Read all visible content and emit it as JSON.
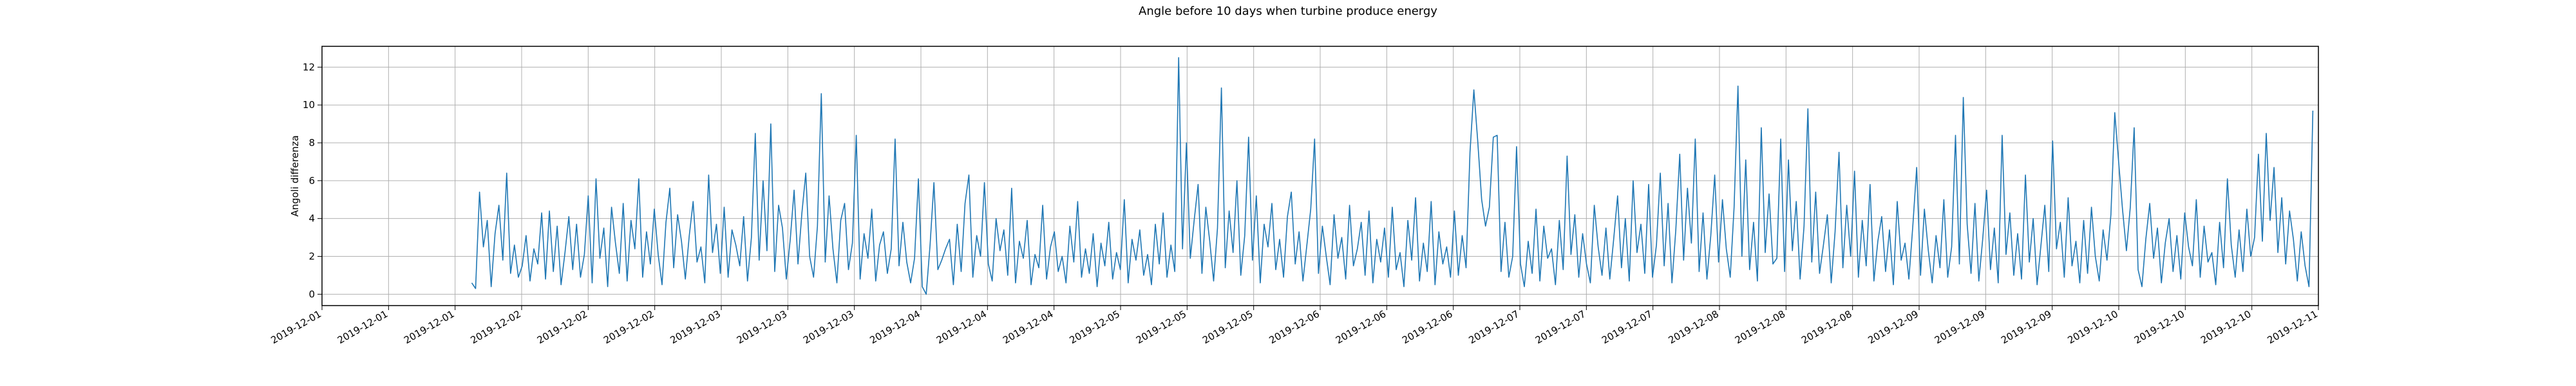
{
  "chart_data": {
    "type": "line",
    "title": "Angle before 10 days when turbine produce energy",
    "xlabel": "",
    "ylabel": "Angoli differenza",
    "grid": true,
    "ylim": [
      -0.6,
      13.1
    ],
    "xlim": [
      "2019-12-01T00:00",
      "2019-12-11T00:00"
    ],
    "line_color": "#1f77b4",
    "yticks": [
      0,
      2,
      4,
      6,
      8,
      10,
      12
    ],
    "xticks": [
      {
        "t": "2019-12-01T00:00",
        "label": "2019-12-01"
      },
      {
        "t": "2019-12-01T12:00",
        "label": "2019-12-01"
      },
      {
        "t": "2019-12-02T00:00",
        "label": "2019-12-01"
      },
      {
        "t": "2019-12-02T12:00",
        "label": "2019-12-02"
      },
      {
        "t": "2019-12-03T00:00",
        "label": "2019-12-02"
      },
      {
        "t": "2019-12-03T12:00",
        "label": "2019-12-02"
      },
      {
        "t": "2019-12-04T00:00",
        "label": "2019-12-03"
      },
      {
        "t": "2019-12-04T12:00",
        "label": "2019-12-03"
      },
      {
        "t": "2019-12-05T00:00",
        "label": "2019-12-03"
      },
      {
        "t": "2019-12-05T12:00",
        "label": "2019-12-04"
      },
      {
        "t": "2019-12-06T00:00",
        "label": "2019-12-04"
      },
      {
        "t": "2019-12-06T12:00",
        "label": "2019-12-04"
      },
      {
        "t": "2019-12-07T00:00",
        "label": "2019-12-05"
      },
      {
        "t": "2019-12-07T12:00",
        "label": "2019-12-05"
      },
      {
        "t": "2019-12-08T00:00",
        "label": "2019-12-05"
      },
      {
        "t": "2019-12-08T12:00",
        "label": "2019-12-06"
      },
      {
        "t": "2019-12-09T00:00",
        "label": "2019-12-06"
      },
      {
        "t": "2019-12-09T12:00",
        "label": "2019-12-06"
      },
      {
        "t": "2019-12-10T00:00",
        "label": "2019-12-07"
      },
      {
        "t": "2019-12-10T12:00",
        "label": "2019-12-07"
      },
      {
        "t": "2019-12-11T00:00",
        "label": "2019-12-07"
      },
      {
        "t": "2019-12-11T12:00",
        "label": "2019-12-08"
      },
      {
        "t": "2019-12-12T00:00",
        "label": "2019-12-08"
      },
      {
        "t": "2019-12-12T12:00",
        "label": "2019-12-08"
      },
      {
        "t": "2019-12-13T00:00",
        "label": "2019-12-09"
      },
      {
        "t": "2019-12-13T12:00",
        "label": "2019-12-09"
      },
      {
        "t": "2019-12-14T00:00",
        "label": "2019-12-09"
      },
      {
        "t": "2019-12-14T12:00",
        "label": "2019-12-10"
      },
      {
        "t": "2019-12-15T00:00",
        "label": "2019-12-10"
      },
      {
        "t": "2019-12-15T12:00",
        "label": "2019-12-10"
      },
      {
        "t": "2019-12-16T00:00",
        "label": "2019-12-11"
      }
    ],
    "series": [
      {
        "values": [
          0.6,
          0.3,
          5.4,
          2.5,
          3.9,
          0.4,
          3.2,
          4.7,
          1.8,
          6.4,
          1.1,
          2.6,
          0.9,
          1.5,
          3.1,
          0.7,
          2.4,
          1.6,
          4.3,
          0.8,
          4.4,
          1.2,
          3.6,
          0.5,
          2.2,
          4.1,
          1.3,
          3.7,
          0.9,
          2.1,
          5.2,
          0.6,
          6.1,
          1.9,
          3.5,
          0.4,
          4.6,
          2.7,
          1.1,
          4.8,
          0.7,
          3.9,
          2.4,
          6.1,
          0.9,
          3.3,
          1.6,
          4.5,
          2.1,
          0.5,
          3.8,
          5.6,
          1.4,
          4.2,
          2.8,
          0.8,
          3.1,
          4.9,
          1.7,
          2.5,
          0.6,
          6.3,
          2.2,
          3.7,
          1.1,
          4.6,
          0.9,
          3.4,
          2.6,
          1.5,
          4.1,
          0.7,
          3.0,
          8.5,
          1.8,
          6.0,
          2.3,
          9.0,
          1.2,
          4.7,
          3.5,
          0.8,
          2.9,
          5.5,
          1.6,
          4.3,
          6.4,
          2.0,
          0.9,
          3.6,
          10.6,
          1.7,
          5.2,
          2.4,
          0.6,
          3.9,
          4.8,
          1.3,
          2.7,
          8.4,
          0.8,
          3.2,
          1.9,
          4.5,
          0.7,
          2.6,
          3.3,
          1.1,
          2.4,
          8.2,
          1.5,
          3.8,
          1.7,
          0.6,
          1.9,
          6.1,
          0.4,
          0.0,
          2.6,
          5.9,
          1.3,
          1.8,
          2.4,
          2.9,
          0.5,
          3.7,
          1.2,
          4.8,
          6.3,
          0.9,
          3.1,
          2.0,
          5.9,
          1.6,
          0.7,
          4.0,
          2.3,
          3.4,
          1.0,
          5.6,
          0.6,
          2.8,
          1.9,
          3.9,
          0.5,
          2.1,
          1.4,
          4.7,
          0.8,
          2.5,
          3.3,
          1.2,
          2.0,
          0.6,
          3.6,
          1.7,
          4.9,
          0.9,
          2.4,
          1.1,
          3.2,
          0.4,
          2.7,
          1.5,
          3.8,
          0.8,
          2.2,
          1.3,
          5.0,
          0.6,
          2.9,
          1.8,
          3.4,
          1.0,
          2.1,
          0.5,
          3.7,
          1.6,
          4.3,
          0.9,
          2.6,
          1.2,
          12.5,
          2.4,
          8.0,
          1.9,
          3.9,
          5.8,
          1.1,
          4.6,
          2.8,
          0.7,
          3.5,
          10.9,
          1.4,
          4.4,
          2.2,
          6.0,
          1.0,
          3.1,
          8.3,
          1.8,
          5.2,
          0.6,
          3.7,
          2.5,
          4.8,
          1.3,
          2.9,
          0.9,
          4.1,
          5.4,
          1.6,
          3.3,
          0.7,
          2.6,
          4.5,
          8.2,
          1.1,
          3.6,
          2.0,
          0.5,
          4.2,
          1.9,
          3.0,
          0.8,
          4.7,
          1.5,
          2.4,
          3.8,
          1.0,
          4.4,
          0.6,
          2.9,
          1.7,
          3.5,
          0.9,
          4.6,
          1.3,
          2.2,
          0.4,
          3.9,
          1.8,
          5.1,
          0.7,
          2.7,
          1.2,
          4.9,
          0.5,
          3.3,
          1.6,
          2.5,
          0.9,
          4.4,
          1.0,
          3.1,
          1.4,
          7.5,
          10.8,
          8.1,
          5.0,
          3.6,
          4.6,
          8.3,
          8.4,
          1.2,
          3.8,
          0.9,
          2.0,
          7.8,
          1.6,
          0.4,
          2.8,
          1.1,
          4.5,
          0.7,
          3.6,
          1.9,
          2.4,
          0.5,
          3.9,
          1.3,
          7.3,
          2.1,
          4.2,
          0.9,
          3.2,
          1.6,
          0.6,
          4.7,
          2.5,
          1.0,
          3.5,
          0.8,
          2.9,
          5.2,
          1.4,
          4.0,
          0.7,
          6.0,
          2.2,
          3.7,
          1.1,
          5.8,
          0.9,
          2.6,
          6.4,
          1.5,
          4.8,
          0.6,
          3.4,
          7.4,
          1.8,
          5.6,
          2.7,
          8.2,
          1.2,
          4.3,
          0.8,
          3.1,
          6.3,
          1.7,
          5.0,
          2.4,
          0.9,
          4.6,
          11.0,
          2.0,
          7.1,
          1.3,
          3.8,
          0.7,
          8.8,
          2.2,
          5.3,
          1.6,
          1.9,
          8.2,
          1.2,
          7.1,
          2.3,
          4.9,
          0.8,
          3.6,
          9.8,
          1.7,
          5.4,
          1.1,
          2.6,
          4.2,
          0.6,
          3.3,
          7.5,
          1.4,
          4.7,
          2.0,
          6.5,
          0.9,
          3.9,
          1.5,
          5.8,
          0.7,
          2.8,
          4.1,
          1.2,
          3.4,
          0.5,
          4.9,
          1.8,
          2.7,
          0.8,
          3.6,
          6.7,
          1.0,
          4.5,
          2.3,
          0.6,
          3.1,
          1.4,
          5.0,
          0.9,
          2.5,
          8.4,
          1.6,
          10.4,
          3.7,
          1.1,
          4.8,
          0.7,
          2.9,
          5.5,
          1.3,
          3.5,
          0.6,
          8.4,
          2.1,
          4.3,
          1.0,
          3.2,
          0.8,
          6.3,
          1.7,
          4.0,
          0.5,
          2.6,
          4.7,
          1.2,
          8.1,
          2.4,
          3.8,
          0.9,
          5.1,
          1.5,
          2.8,
          0.6,
          3.9,
          1.1,
          4.6,
          2.0,
          0.7,
          3.4,
          1.8,
          4.2,
          9.6,
          7.0,
          4.5,
          2.3,
          4.6,
          8.8,
          1.3,
          0.4,
          2.9,
          4.8,
          1.9,
          3.5,
          0.6,
          2.7,
          4.0,
          1.2,
          3.1,
          0.8,
          4.3,
          2.5,
          1.5,
          5.0,
          0.9,
          3.6,
          1.7,
          2.2,
          0.5,
          3.8,
          1.4,
          6.1,
          2.6,
          0.9,
          3.4,
          1.2,
          4.5,
          2.0,
          3.0,
          7.4,
          2.8,
          8.5,
          3.9,
          6.7,
          2.2,
          5.1,
          1.6,
          4.4,
          2.9,
          0.7,
          3.3,
          1.5,
          0.4,
          9.7
        ]
      }
    ]
  }
}
